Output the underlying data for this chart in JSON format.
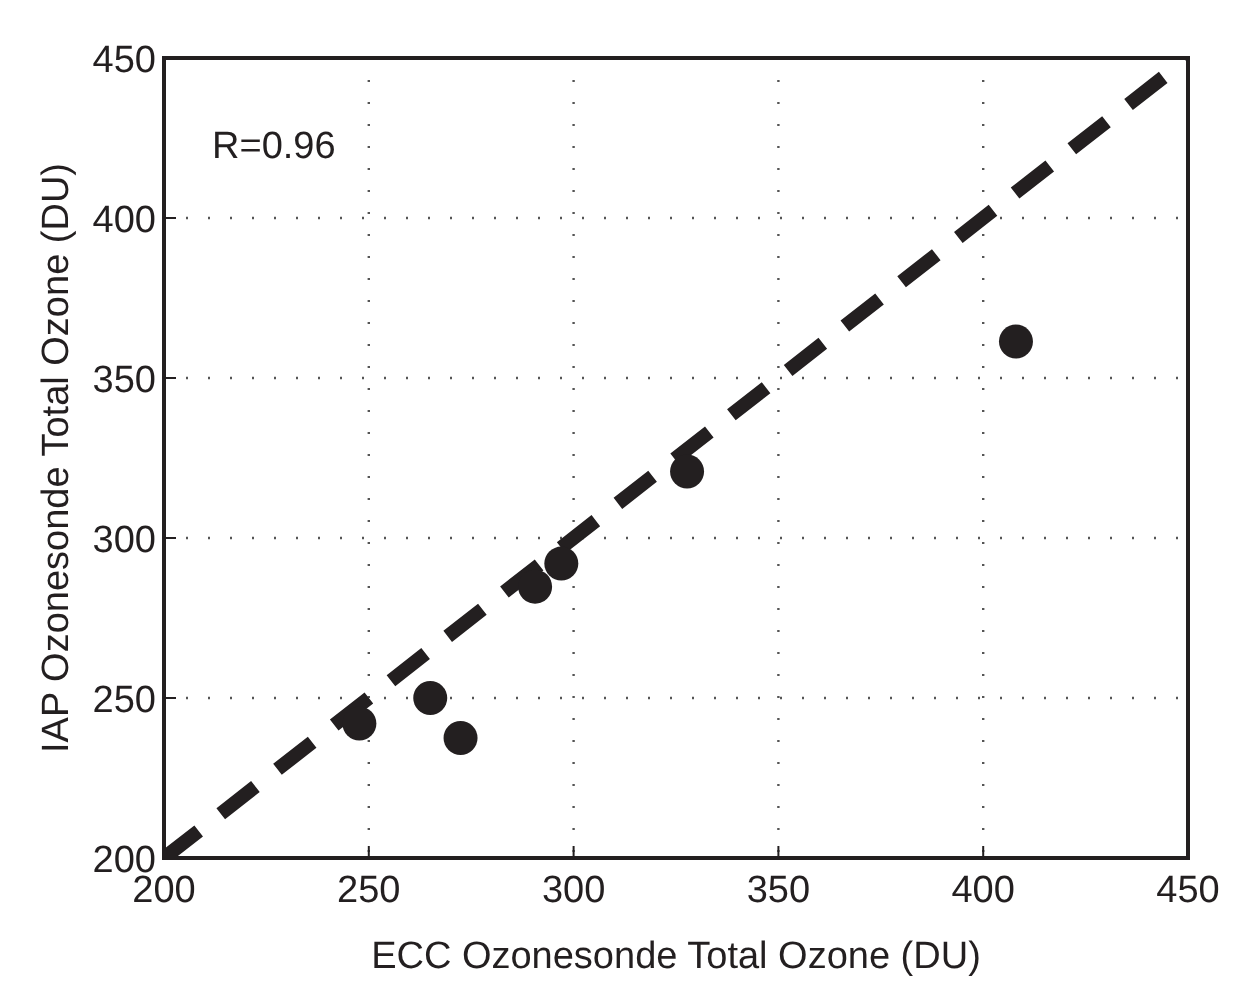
{
  "chart_data": {
    "type": "scatter",
    "xlabel": "ECC Ozonesonde Total Ozone (DU)",
    "ylabel": "IAP Ozonesonde Total Ozone (DU)",
    "annotations": [
      "R=0.96"
    ],
    "xlim": [
      200,
      450
    ],
    "ylim": [
      200,
      450
    ],
    "xticks": [
      200,
      250,
      300,
      350,
      400,
      450
    ],
    "yticks": [
      200,
      250,
      300,
      350,
      400,
      450
    ],
    "grid": true,
    "series": [
      {
        "color": "#231f20",
        "marker": "circle",
        "x": [
          247.7,
          265,
          272.4,
          290.6,
          297,
          327.7,
          408
        ],
        "values": [
          242,
          250,
          237.5,
          284.8,
          292,
          320.8,
          361.4
        ]
      },
      {
        "type": "line",
        "color": "#231f20",
        "line_style": "dashed",
        "x": [
          200,
          450
        ],
        "values": [
          200,
          450
        ]
      }
    ]
  }
}
